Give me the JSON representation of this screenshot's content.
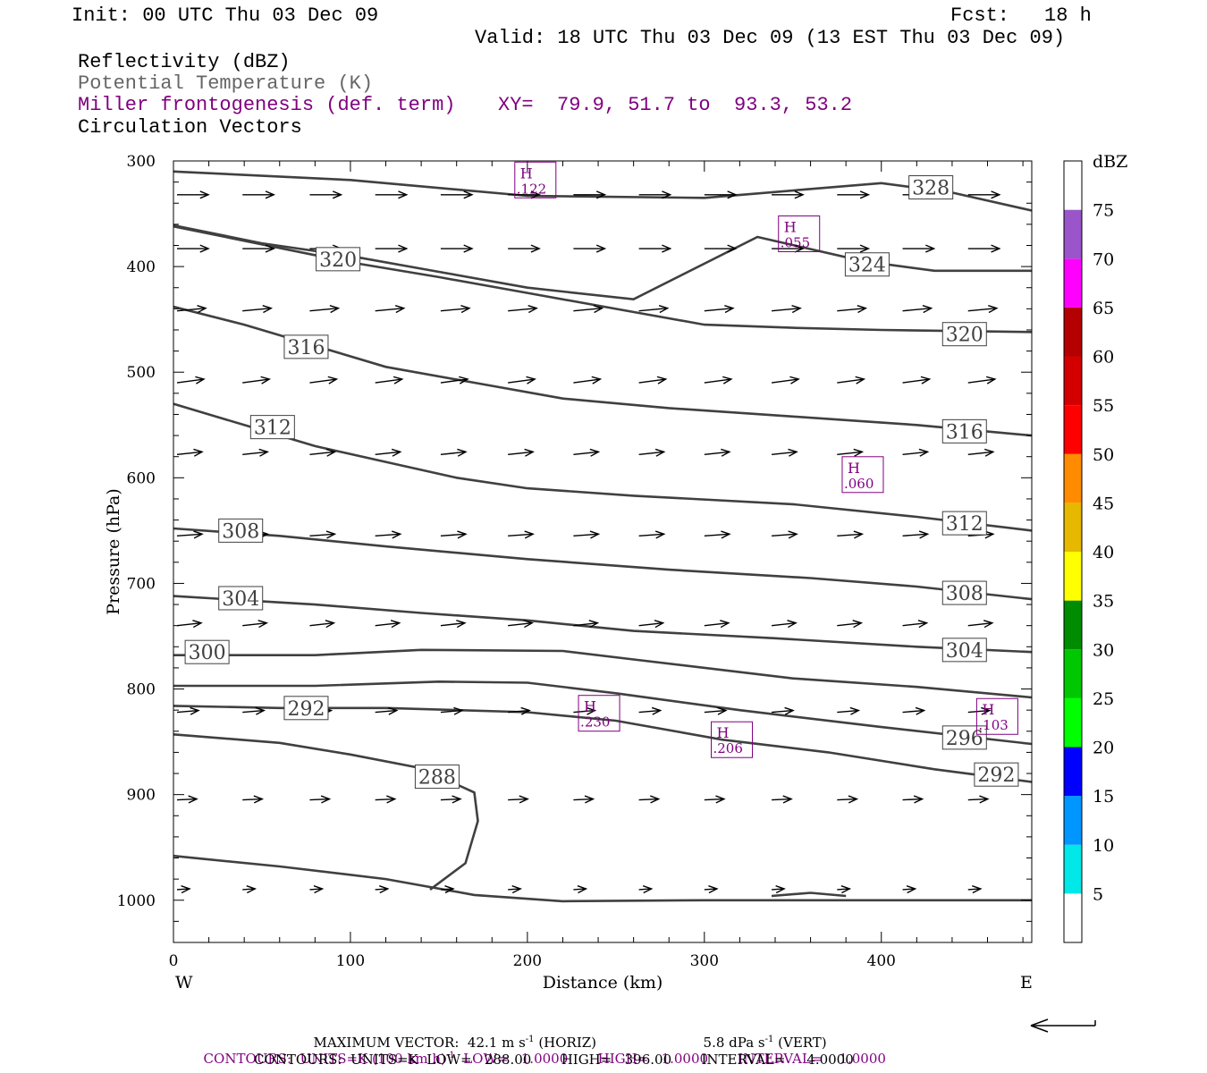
{
  "header": {
    "init": "Init: 00 UTC Thu 03 Dec 09",
    "fcst_label": "Fcst:",
    "fcst_value": "18 h",
    "valid": "Valid: 18 UTC Thu 03 Dec 09 (13 EST Thu 03 Dec 09)"
  },
  "legend": {
    "line1": "Reflectivity (dBZ)",
    "line2": "Potential Temperature (K)",
    "line3": "Miller frontogenesis (def. term)",
    "line3_xy": "XY=  79.9, 51.7 to  93.3, 53.2",
    "line4": "Circulation Vectors"
  },
  "footer": {
    "max_vector": "MAXIMUM VECTOR:  42.1 m s",
    "max_vector_sup": "-1",
    "max_vector_horiz": "(HORIZ)",
    "vert_value": "5.8 dPa s",
    "vert_sup": "-1",
    "vert_label": "(VERT)",
    "contours_front": "CONTOURS:  UNITS=K (100 km h)",
    "contours_front_sup": "-1",
    "contours_front_rest": "LOW=   1.0000       HIGH=   1.0000       INTERVAL=    1.0000",
    "contours_theta": "CONTOURS:  UNITS=K  LOW=   288.00       HIGH=   396.00       INTERVAL=     4.0000"
  },
  "colors": {
    "frontogenesis": "#800080",
    "theta_line": "#404040",
    "accent": "#000000"
  },
  "chart_data": {
    "type": "cross-section",
    "xlabel": "Distance (km)",
    "ylabel": "Pressure (hPa)",
    "x_ticks": [
      0,
      100,
      200,
      300,
      400
    ],
    "y_ticks": [
      300,
      400,
      500,
      600,
      700,
      800,
      900,
      1000
    ],
    "xlim": [
      0,
      485
    ],
    "ylim": [
      1040,
      300
    ],
    "left_end_label": "W",
    "right_end_label": "E",
    "colorbar": {
      "title": "dBZ",
      "labels": [
        "5",
        "10",
        "15",
        "20",
        "25",
        "30",
        "35",
        "40",
        "45",
        "50",
        "55",
        "60",
        "65",
        "70",
        "75"
      ],
      "colors": [
        "#ffffff",
        "#00e8e8",
        "#0096ff",
        "#0000ff",
        "#00ff00",
        "#00c800",
        "#008c00",
        "#ffff00",
        "#e6b800",
        "#ff8c00",
        "#ff0000",
        "#d40000",
        "#b40000",
        "#ff00ff",
        "#9955c9",
        "#ffffff"
      ]
    },
    "theta_contours": [
      {
        "label": "328",
        "points": [
          [
            0,
            310
          ],
          [
            100,
            318
          ],
          [
            200,
            333
          ],
          [
            300,
            335
          ],
          [
            400,
            321
          ],
          [
            440,
            330
          ],
          [
            485,
            347
          ]
        ],
        "labels_at": [
          [
            428,
            325
          ]
        ]
      },
      {
        "label": "324",
        "points": [
          [
            0,
            361
          ],
          [
            50,
            378
          ],
          [
            100,
            390
          ],
          [
            150,
            405
          ],
          [
            200,
            420
          ],
          [
            260,
            431
          ],
          [
            330,
            372
          ],
          [
            390,
            395
          ],
          [
            430,
            404
          ],
          [
            485,
            404
          ]
        ],
        "labels_at": [
          [
            392,
            398
          ]
        ]
      },
      {
        "label": "320",
        "points": [
          [
            0,
            362
          ],
          [
            50,
            379
          ],
          [
            100,
            396
          ],
          [
            150,
            410
          ],
          [
            200,
            425
          ],
          [
            250,
            440
          ],
          [
            300,
            455
          ],
          [
            350,
            458
          ],
          [
            400,
            460
          ],
          [
            485,
            462
          ]
        ],
        "labels_at": [
          [
            93,
            393
          ],
          [
            447,
            464
          ]
        ]
      },
      {
        "label": "316",
        "points": [
          [
            0,
            438
          ],
          [
            40,
            455
          ],
          [
            80,
            475
          ],
          [
            120,
            495
          ],
          [
            170,
            510
          ],
          [
            220,
            525
          ],
          [
            280,
            534
          ],
          [
            350,
            542
          ],
          [
            420,
            550
          ],
          [
            485,
            560
          ]
        ],
        "labels_at": [
          [
            75,
            476
          ],
          [
            447,
            556
          ]
        ]
      },
      {
        "label": "312",
        "points": [
          [
            0,
            530
          ],
          [
            40,
            550
          ],
          [
            80,
            570
          ],
          [
            120,
            585
          ],
          [
            160,
            600
          ],
          [
            200,
            610
          ],
          [
            260,
            617
          ],
          [
            350,
            625
          ],
          [
            420,
            637
          ],
          [
            485,
            650
          ]
        ],
        "labels_at": [
          [
            56,
            552
          ],
          [
            447,
            643
          ]
        ]
      },
      {
        "label": "308",
        "points": [
          [
            0,
            648
          ],
          [
            60,
            655
          ],
          [
            120,
            665
          ],
          [
            200,
            677
          ],
          [
            280,
            687
          ],
          [
            360,
            695
          ],
          [
            420,
            703
          ],
          [
            485,
            715
          ]
        ],
        "labels_at": [
          [
            38,
            650
          ],
          [
            447,
            709
          ]
        ]
      },
      {
        "label": "304",
        "points": [
          [
            0,
            712
          ],
          [
            80,
            720
          ],
          [
            140,
            728
          ],
          [
            200,
            735
          ],
          [
            260,
            745
          ],
          [
            340,
            752
          ],
          [
            420,
            760
          ],
          [
            485,
            765
          ]
        ],
        "labels_at": [
          [
            38,
            714
          ],
          [
            447,
            763
          ]
        ]
      },
      {
        "label": "300",
        "points": [
          [
            0,
            768
          ],
          [
            80,
            768
          ],
          [
            140,
            763
          ],
          [
            220,
            764
          ],
          [
            260,
            772
          ],
          [
            350,
            790
          ],
          [
            420,
            798
          ],
          [
            485,
            808
          ]
        ],
        "labels_at": [
          [
            19,
            765
          ]
        ]
      },
      {
        "label": "296",
        "points": [
          [
            0,
            797
          ],
          [
            80,
            797
          ],
          [
            150,
            793
          ],
          [
            200,
            794
          ],
          [
            250,
            804
          ],
          [
            320,
            820
          ],
          [
            400,
            836
          ],
          [
            485,
            852
          ]
        ],
        "labels_at": [
          [
            447,
            846
          ]
        ]
      },
      {
        "label": "292",
        "points": [
          [
            0,
            816
          ],
          [
            60,
            818
          ],
          [
            120,
            818
          ],
          [
            200,
            822
          ],
          [
            250,
            830
          ],
          [
            310,
            848
          ],
          [
            370,
            860
          ],
          [
            430,
            876
          ],
          [
            485,
            888
          ]
        ],
        "labels_at": [
          [
            75,
            818
          ],
          [
            465,
            881
          ]
        ]
      },
      {
        "label": "288",
        "points": [
          [
            0,
            843
          ],
          [
            60,
            851
          ],
          [
            100,
            862
          ],
          [
            140,
            875
          ],
          [
            170,
            898
          ],
          [
            172,
            925
          ],
          [
            165,
            965
          ],
          [
            145,
            990
          ]
        ],
        "labels_at": [
          [
            149,
            883
          ]
        ]
      },
      {
        "label": "",
        "points": [
          [
            0,
            958
          ],
          [
            60,
            968
          ],
          [
            120,
            980
          ],
          [
            170,
            995
          ],
          [
            220,
            1001
          ],
          [
            300,
            1000
          ],
          [
            400,
            1000
          ],
          [
            485,
            1000
          ]
        ],
        "labels_at": []
      },
      {
        "label": "",
        "points": [
          [
            338,
            996
          ],
          [
            360,
            993
          ],
          [
            380,
            996
          ]
        ],
        "labels_at": []
      }
    ],
    "frontogenesis_highs": [
      {
        "label": "H",
        "value": ".122",
        "x": 204,
        "p": 318
      },
      {
        "label": "H",
        "value": ".055",
        "x": 353,
        "p": 369
      },
      {
        "label": "H",
        "value": ".060",
        "x": 389,
        "p": 597
      },
      {
        "label": "H",
        "value": ".230",
        "x": 240,
        "p": 823
      },
      {
        "label": "H",
        "value": ".206",
        "x": 315,
        "p": 848
      },
      {
        "label": "H",
        "value": ".103",
        "x": 465,
        "p": 826
      }
    ],
    "vectors": [
      {
        "p": 332,
        "x": [
          0,
          37,
          75,
          112,
          149,
          187,
          224,
          261,
          298,
          336,
          373,
          410,
          447
        ],
        "len": 35,
        "slope": 0
      },
      {
        "p": 383,
        "x": [
          0,
          37,
          75,
          112,
          149,
          187,
          224,
          261,
          298,
          336,
          373,
          410,
          447
        ],
        "len": 35,
        "slope": 0
      },
      {
        "p": 442,
        "x": [
          0,
          37,
          75,
          112,
          149,
          187,
          224,
          261,
          298,
          336,
          373,
          410,
          447
        ],
        "len": 32,
        "slope": -3
      },
      {
        "p": 510,
        "x": [
          0,
          37,
          75,
          112,
          149,
          187,
          224,
          261,
          298,
          336,
          373,
          410,
          447
        ],
        "len": 30,
        "slope": -4
      },
      {
        "p": 578,
        "x": [
          0,
          37,
          75,
          112,
          149,
          187,
          224,
          261,
          298,
          336,
          373,
          410,
          447
        ],
        "len": 28,
        "slope": -3
      },
      {
        "p": 655,
        "x": [
          0,
          37,
          75,
          112,
          149,
          187,
          224,
          261,
          298,
          336,
          373,
          410,
          447
        ],
        "len": 28,
        "slope": -2
      },
      {
        "p": 740,
        "x": [
          0,
          37,
          75,
          112,
          149,
          187,
          224,
          261,
          298,
          336,
          373,
          410,
          447
        ],
        "len": 27,
        "slope": -3
      },
      {
        "p": 822,
        "x": [
          0,
          37,
          75,
          112,
          149,
          187,
          224,
          261,
          298,
          336,
          373,
          410,
          447
        ],
        "len": 24,
        "slope": -2
      },
      {
        "p": 905,
        "x": [
          0,
          37,
          75,
          112,
          149,
          187,
          224,
          261,
          298,
          336,
          373,
          410,
          447
        ],
        "len": 22,
        "slope": -1
      },
      {
        "p": 990,
        "x": [
          0,
          37,
          75,
          112,
          149,
          187,
          224,
          261,
          298,
          336,
          373,
          410,
          447
        ],
        "len": 14,
        "slope": -1
      }
    ]
  }
}
